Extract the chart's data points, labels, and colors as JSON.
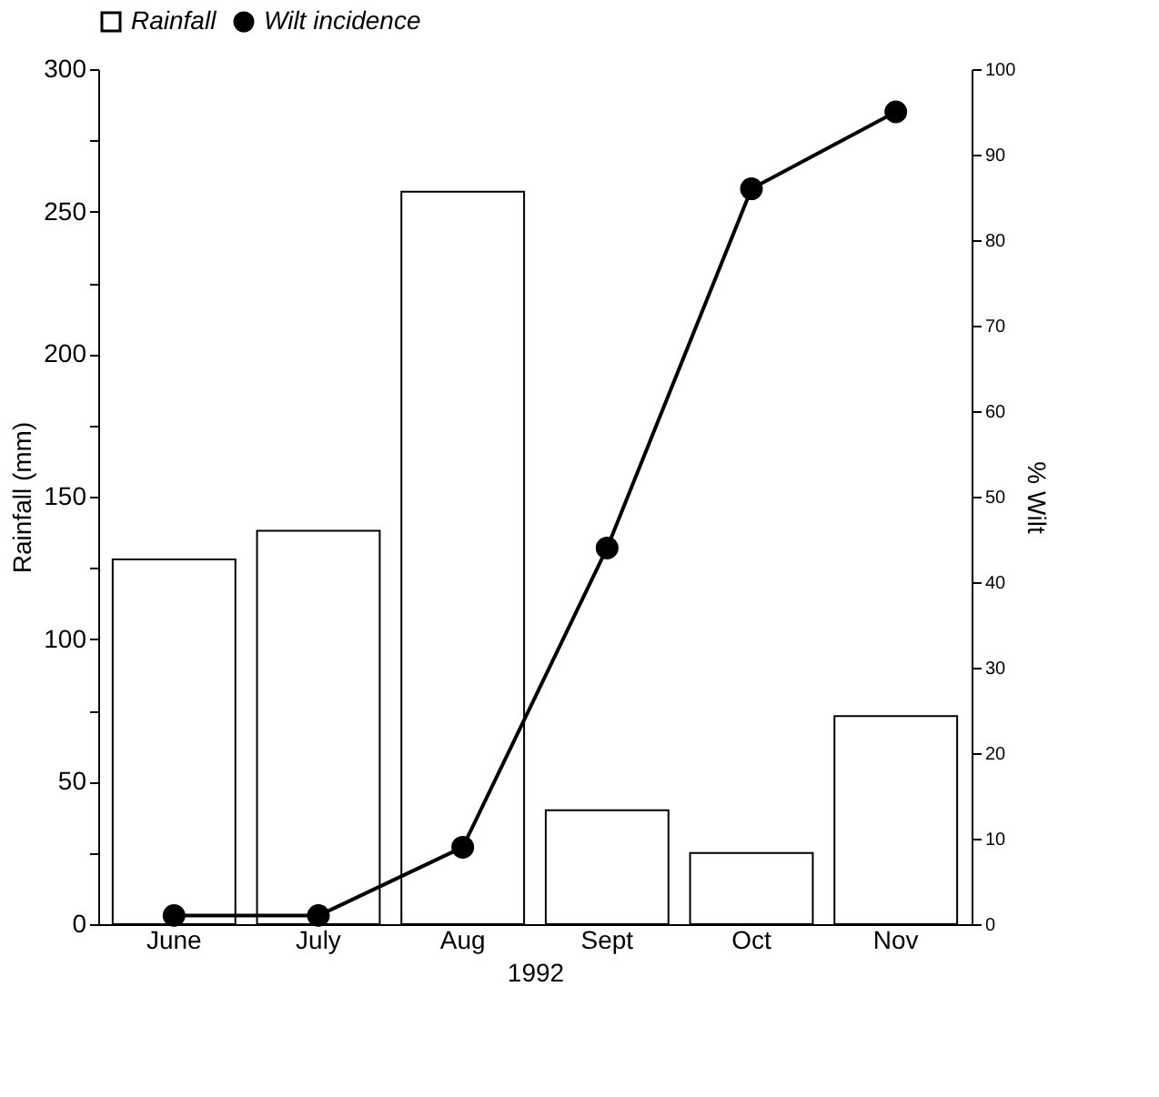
{
  "chart_data": {
    "type": "bar",
    "xlabel": "1992",
    "ylabel": "Rainfall (mm)",
    "y2label": "% Wilt",
    "categories": [
      "June",
      "July",
      "Aug",
      "Sept",
      "Oct",
      "Nov"
    ],
    "series": [
      {
        "name": "Rainfall",
        "color": "#ffffff",
        "values": [
          128,
          138,
          257,
          40,
          25,
          73
        ]
      },
      {
        "name": "Wilt incidence",
        "type": "line",
        "axis": "y2",
        "color": "#000000",
        "marker": "circle",
        "values": [
          1,
          1,
          9,
          44,
          86,
          95
        ]
      }
    ],
    "ylim": [
      0,
      300
    ],
    "yticks": [
      0,
      {
        "value": 25,
        "label": null
      },
      50,
      {
        "value": 75,
        "label": null
      },
      100,
      {
        "value": 125,
        "label": null
      },
      150,
      {
        "value": 175,
        "label": null
      },
      200,
      {
        "value": 225,
        "label": null
      },
      250,
      {
        "value": 275,
        "label": null
      },
      300
    ],
    "y2lim": [
      0,
      100
    ],
    "y2ticks": [
      0,
      10,
      20,
      30,
      40,
      50,
      60,
      70,
      80,
      90,
      100
    ],
    "grid": false,
    "legend": "top"
  }
}
